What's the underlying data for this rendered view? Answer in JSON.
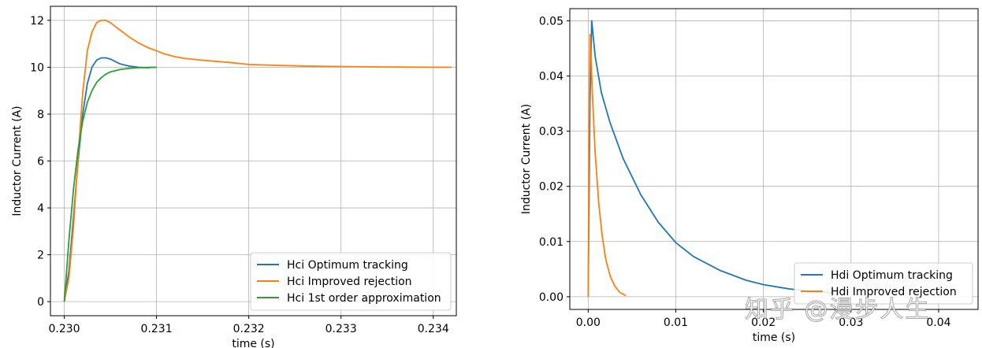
{
  "watermark": "知乎 @漫步人生",
  "chart_data": [
    {
      "type": "line",
      "title": "",
      "xlabel": "time (s)",
      "ylabel": "Inductor Current (A)",
      "xlim": [
        0.22985,
        0.23425
      ],
      "ylim": [
        -0.6,
        12.6
      ],
      "xticks": [
        0.23,
        0.231,
        0.232,
        0.233,
        0.234
      ],
      "xtick_labels": [
        "0.230",
        "0.231",
        "0.232",
        "0.233",
        "0.234"
      ],
      "yticks": [
        0,
        2,
        4,
        6,
        8,
        10,
        12
      ],
      "ytick_labels": [
        "0",
        "2",
        "4",
        "6",
        "8",
        "10",
        "12"
      ],
      "grid": true,
      "legend_position": "lower-right",
      "series": [
        {
          "name": "Hci Optimum tracking",
          "color": "#1f77b4",
          "x": [
            0.23,
            0.23005,
            0.2301,
            0.23015,
            0.2302,
            0.23025,
            0.2303,
            0.23035,
            0.2304,
            0.23045,
            0.2305,
            0.23055,
            0.2306,
            0.2307,
            0.2308,
            0.2309,
            0.231
          ],
          "y": [
            0.0,
            1.3,
            3.6,
            6.0,
            8.0,
            9.3,
            10.0,
            10.3,
            10.4,
            10.4,
            10.35,
            10.25,
            10.15,
            10.05,
            10.0,
            9.98,
            10.0
          ]
        },
        {
          "name": "Hci Improved rejection",
          "color": "#ff7f0e",
          "x": [
            0.23,
            0.23005,
            0.2301,
            0.23015,
            0.2302,
            0.23025,
            0.2303,
            0.23035,
            0.2304,
            0.23045,
            0.2305,
            0.23055,
            0.2306,
            0.2307,
            0.2308,
            0.2309,
            0.231,
            0.2311,
            0.2312,
            0.2313,
            0.2315,
            0.2318,
            0.232,
            0.2323,
            0.2326,
            0.233,
            0.2335,
            0.234,
            0.2342
          ],
          "y": [
            0.0,
            1.0,
            3.2,
            6.2,
            8.9,
            10.7,
            11.5,
            11.9,
            12.0,
            12.0,
            11.9,
            11.75,
            11.6,
            11.3,
            11.05,
            10.85,
            10.7,
            10.55,
            10.45,
            10.38,
            10.3,
            10.2,
            10.12,
            10.08,
            10.05,
            10.03,
            10.01,
            10.0,
            10.0
          ]
        },
        {
          "name": "Hci 1st order approximation",
          "color": "#2ca02c",
          "x": [
            0.23,
            0.23005,
            0.2301,
            0.23015,
            0.2302,
            0.23025,
            0.2303,
            0.23035,
            0.2304,
            0.23045,
            0.2305,
            0.2306,
            0.2307,
            0.2308,
            0.2309,
            0.231
          ],
          "y": [
            0.0,
            2.6,
            4.8,
            6.5,
            7.7,
            8.5,
            9.0,
            9.35,
            9.55,
            9.7,
            9.8,
            9.9,
            9.95,
            9.98,
            9.99,
            10.0
          ]
        }
      ]
    },
    {
      "type": "line",
      "title": "",
      "xlabel": "time (s)",
      "ylabel": "Inductor Current (A)",
      "xlim": [
        -0.0021,
        0.0445
      ],
      "ylim": [
        -0.0023,
        0.0522
      ],
      "xticks": [
        0.0,
        0.01,
        0.02,
        0.03,
        0.04
      ],
      "xtick_labels": [
        "0.00",
        "0.01",
        "0.02",
        "0.03",
        "0.04"
      ],
      "yticks": [
        0.0,
        0.01,
        0.02,
        0.03,
        0.04,
        0.05
      ],
      "ytick_labels": [
        "0.00",
        "0.01",
        "0.02",
        "0.03",
        "0.04",
        "0.05"
      ],
      "grid": true,
      "legend_position": "lower-right",
      "series": [
        {
          "name": "Hdi Optimum tracking",
          "color": "#1f77b4",
          "x": [
            0.0,
            0.0002,
            0.0004,
            0.0008,
            0.0015,
            0.0025,
            0.004,
            0.006,
            0.008,
            0.01,
            0.012,
            0.015,
            0.018,
            0.02,
            0.023,
            0.026,
            0.028
          ],
          "y": [
            0.0,
            0.035,
            0.05,
            0.0435,
            0.037,
            0.0315,
            0.025,
            0.0185,
            0.0135,
            0.0098,
            0.0073,
            0.0048,
            0.003,
            0.0022,
            0.0014,
            0.0009,
            0.0007
          ]
        },
        {
          "name": "Hdi Improved rejection",
          "color": "#ff7f0e",
          "x": [
            0.0,
            0.0001,
            0.0002,
            0.00025,
            0.0003,
            0.0005,
            0.0008,
            0.0012,
            0.0016,
            0.002,
            0.0025,
            0.003,
            0.0036,
            0.0043
          ],
          "y": [
            0.0,
            0.03,
            0.0475,
            0.047,
            0.044,
            0.036,
            0.026,
            0.017,
            0.011,
            0.0068,
            0.0038,
            0.002,
            0.0008,
            0.0002
          ]
        }
      ]
    }
  ]
}
